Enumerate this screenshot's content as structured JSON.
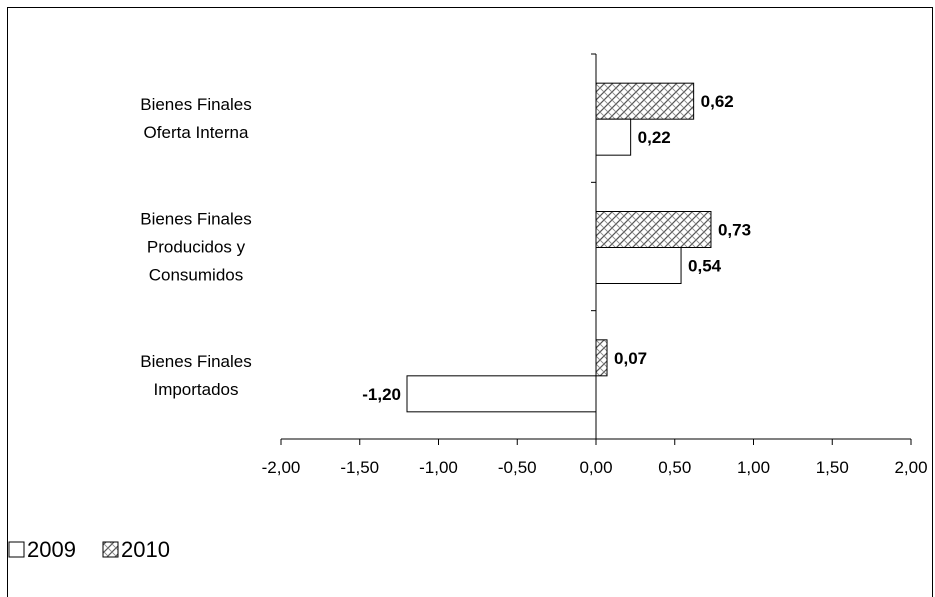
{
  "chart_data": {
    "type": "bar",
    "orientation": "horizontal",
    "categories": [
      [
        "Bienes Finales",
        "Oferta Interna"
      ],
      [
        "Bienes Finales",
        "Producidos y",
        "Consumidos"
      ],
      [
        "Bienes Finales",
        "Importados"
      ]
    ],
    "series": [
      {
        "name": "2010",
        "values": [
          0.62,
          0.73,
          0.07
        ],
        "labels": [
          "0,62",
          "0,73",
          "0,07"
        ],
        "fill": "hatched"
      },
      {
        "name": "2009",
        "values": [
          0.22,
          0.54,
          -1.2
        ],
        "labels": [
          "0,22",
          "0,54",
          "-1,20"
        ],
        "fill": "#ffffff"
      }
    ],
    "xlim": [
      -2.0,
      2.0
    ],
    "xticks": [
      "-2,00",
      "-1,50",
      "-1,00",
      "-0,50",
      "0,00",
      "0,50",
      "1,00",
      "1,50",
      "2,00"
    ],
    "grid": false,
    "legend": {
      "position": "bottom-left",
      "entries": [
        {
          "label": "2009",
          "fill": "#ffffff"
        },
        {
          "label": "2010",
          "fill": "hatched"
        }
      ]
    },
    "colors": {
      "stroke": "#000000",
      "background": "#ffffff"
    }
  }
}
